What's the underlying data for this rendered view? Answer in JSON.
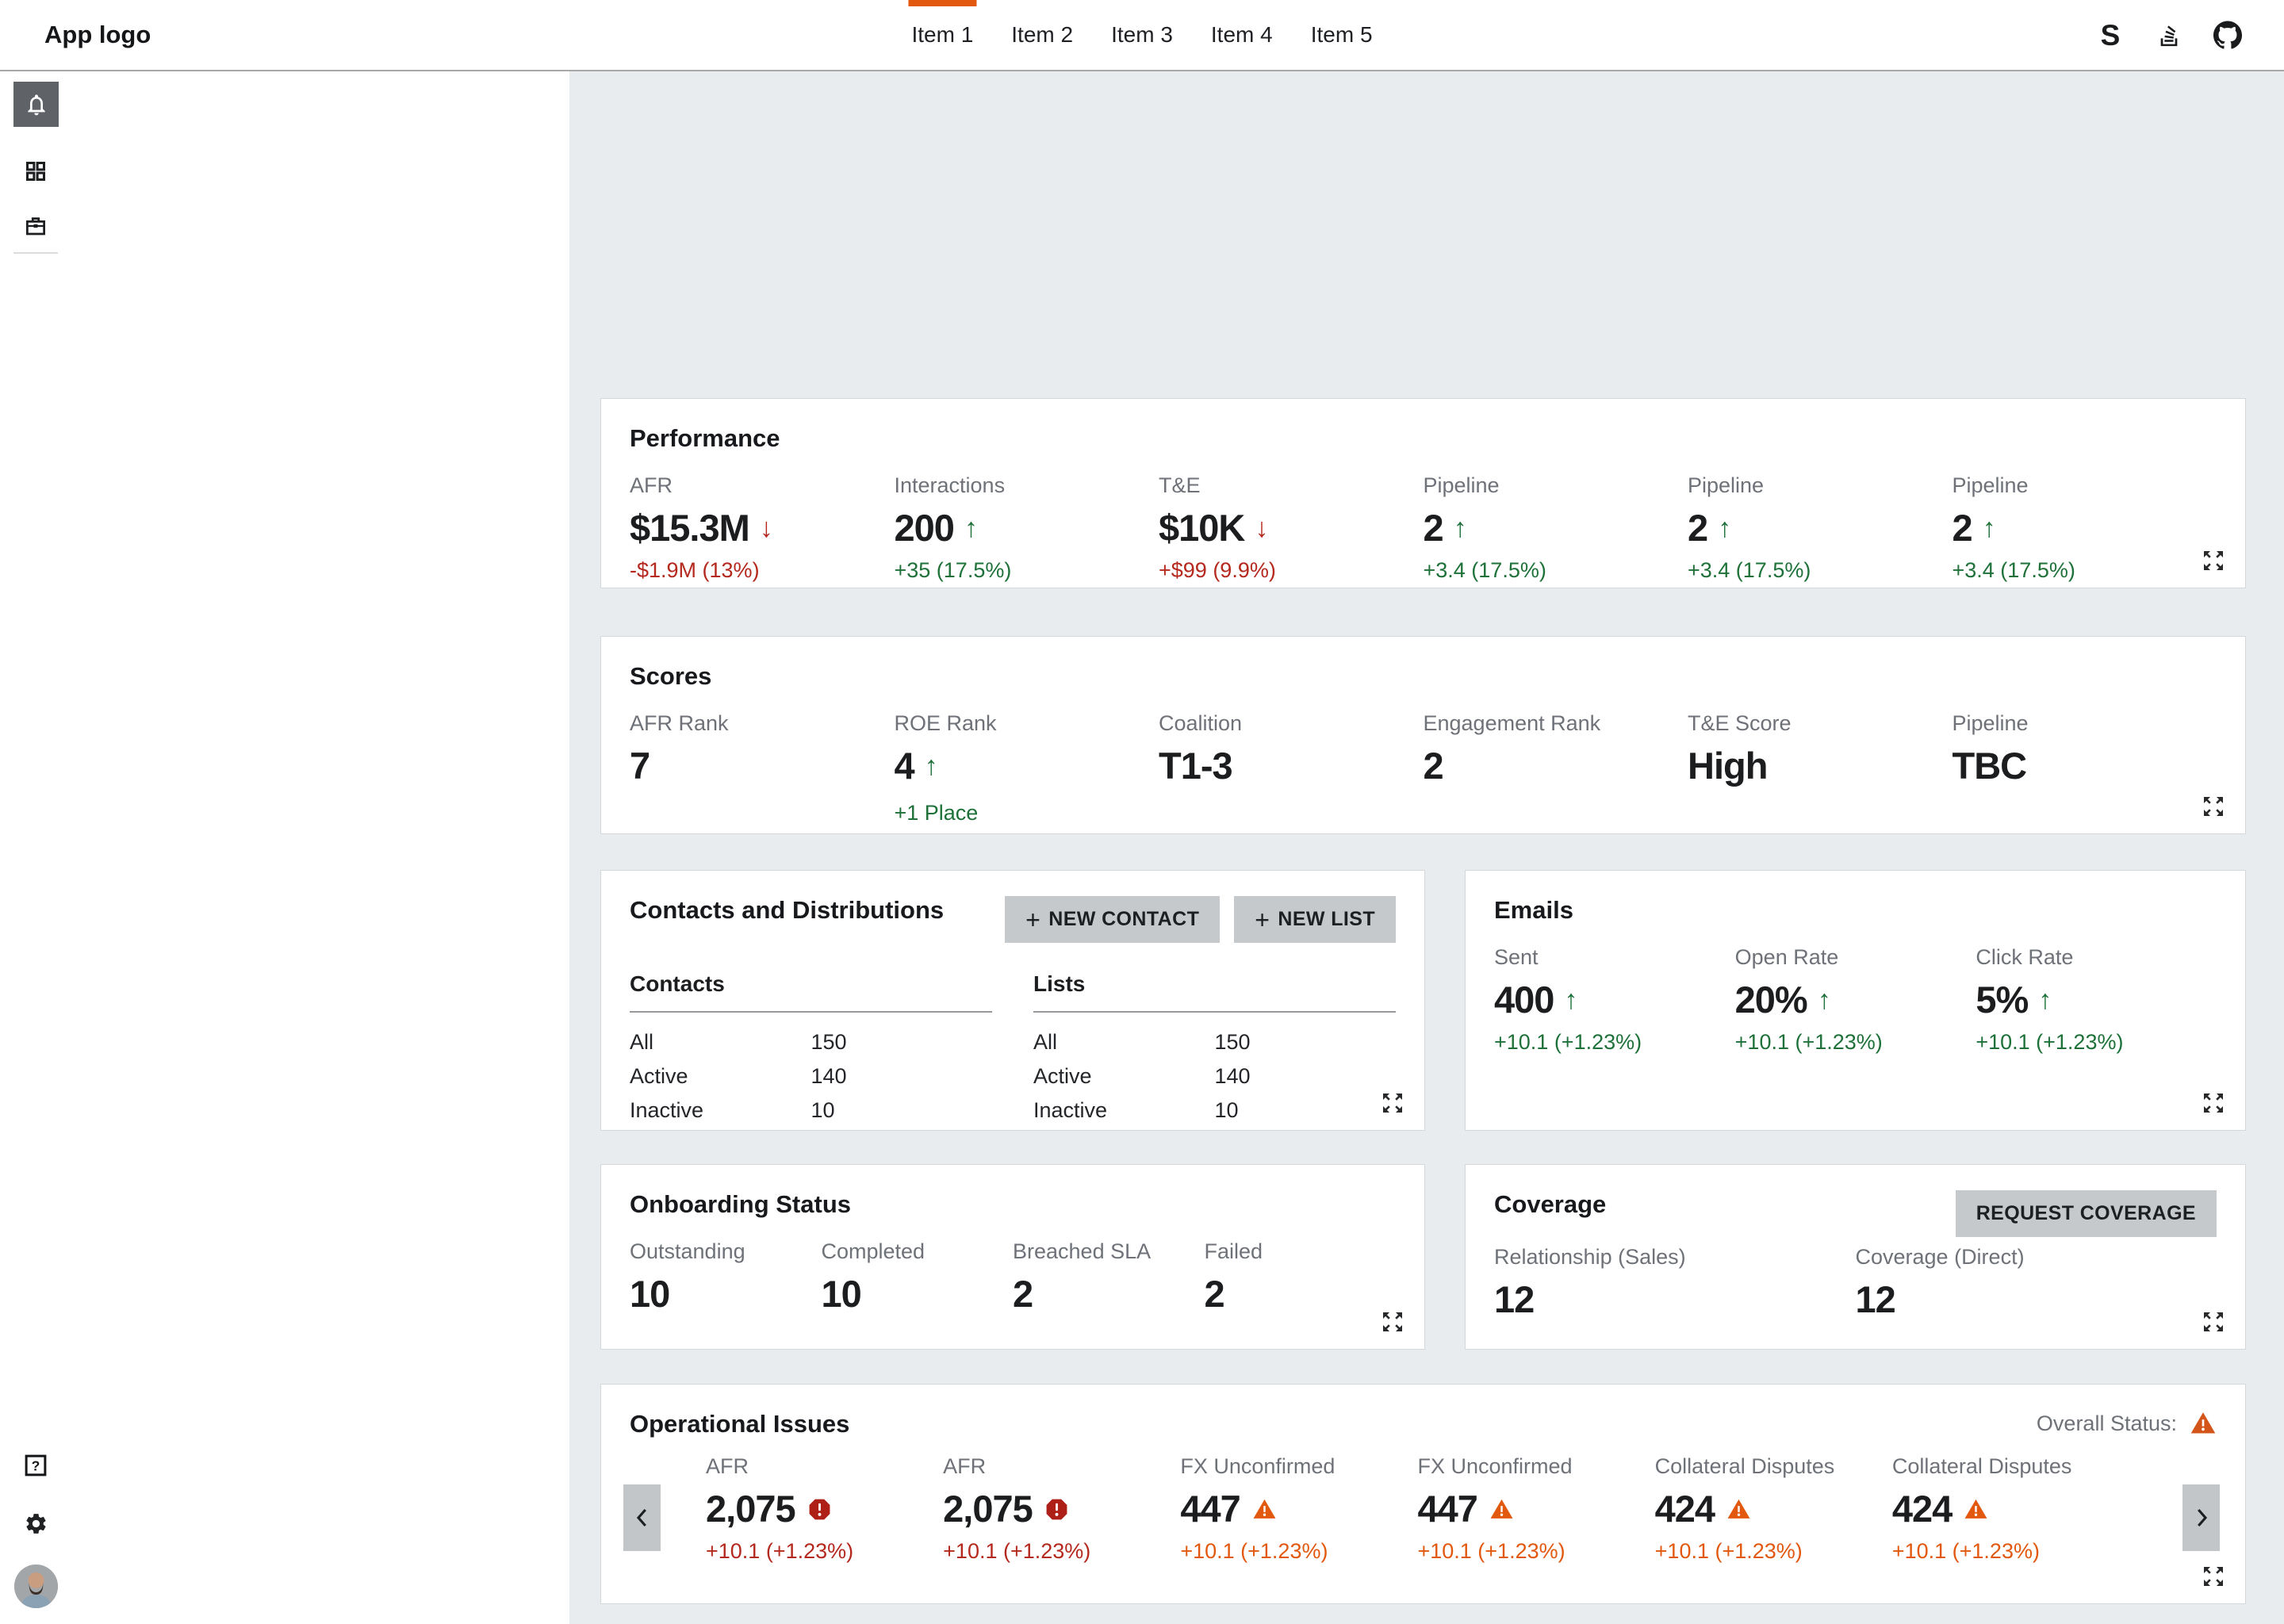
{
  "navbar": {
    "logo": "App logo",
    "tabs": [
      {
        "label": "Item 1",
        "active": true
      },
      {
        "label": "Item 2"
      },
      {
        "label": "Item 3"
      },
      {
        "label": "Item 4"
      },
      {
        "label": "Item 5"
      }
    ],
    "icons": [
      "s-logo-icon",
      "stackoverflow-icon",
      "github-icon"
    ],
    "s_glyph": "S"
  },
  "sidebar": {
    "rail_icons": [
      "bell-icon",
      "grid-icon",
      "briefcase-icon"
    ],
    "bottom_icons": [
      "help-icon",
      "gear-icon",
      "avatar"
    ],
    "help_glyph": "?"
  },
  "cards": {
    "performance": {
      "title": "Performance",
      "metrics": [
        {
          "label": "AFR",
          "value": "$15.3M",
          "dir": "down",
          "change": "-$1.9M (13%)",
          "tone": "neg"
        },
        {
          "label": "Interactions",
          "value": "200",
          "dir": "up",
          "change": "+35 (17.5%)",
          "tone": "pos"
        },
        {
          "label": "T&E",
          "value": "$10K",
          "dir": "down",
          "change": "+$99 (9.9%)",
          "tone": "neg"
        },
        {
          "label": "Pipeline",
          "value": "2",
          "dir": "up",
          "change": "+3.4 (17.5%)",
          "tone": "pos"
        },
        {
          "label": "Pipeline",
          "value": "2",
          "dir": "up",
          "change": "+3.4 (17.5%)",
          "tone": "pos"
        },
        {
          "label": "Pipeline",
          "value": "2",
          "dir": "up",
          "change": "+3.4 (17.5%)",
          "tone": "pos"
        }
      ]
    },
    "scores": {
      "title": "Scores",
      "metrics": [
        {
          "label": "AFR Rank",
          "value": "7"
        },
        {
          "label": "ROE Rank",
          "value": "4",
          "dir": "up",
          "sub": "+1 Place",
          "sub_tone": "pos"
        },
        {
          "label": "Coalition",
          "value": "T1-3"
        },
        {
          "label": "Engagement Rank",
          "value": "2"
        },
        {
          "label": "T&E Score",
          "value": "High"
        },
        {
          "label": "Pipeline",
          "value": "TBC"
        }
      ]
    },
    "contacts": {
      "title": "Contacts and Distributions",
      "buttons": [
        {
          "label": "NEW CONTACT"
        },
        {
          "label": "NEW LIST"
        }
      ],
      "tables": [
        {
          "heading": "Contacts",
          "rows": [
            {
              "label": "All",
              "value": "150"
            },
            {
              "label": "Active",
              "value": "140"
            },
            {
              "label": "Inactive",
              "value": "10"
            }
          ]
        },
        {
          "heading": "Lists",
          "rows": [
            {
              "label": "All",
              "value": "150"
            },
            {
              "label": "Active",
              "value": "140"
            },
            {
              "label": "Inactive",
              "value": "10"
            }
          ]
        }
      ]
    },
    "emails": {
      "title": "Emails",
      "metrics": [
        {
          "label": "Sent",
          "value": "400",
          "dir": "up",
          "change": "+10.1 (+1.23%)",
          "tone": "pos"
        },
        {
          "label": "Open Rate",
          "value": "20%",
          "dir": "up",
          "change": "+10.1 (+1.23%)",
          "tone": "pos"
        },
        {
          "label": "Click Rate",
          "value": "5%",
          "dir": "up",
          "change": "+10.1 (+1.23%)",
          "tone": "pos"
        }
      ]
    },
    "onboarding": {
      "title": "Onboarding Status",
      "metrics": [
        {
          "label": "Outstanding",
          "value": "10"
        },
        {
          "label": "Completed",
          "value": "10"
        },
        {
          "label": "Breached SLA",
          "value": "2"
        },
        {
          "label": "Failed",
          "value": "2"
        }
      ]
    },
    "coverage": {
      "title": "Coverage",
      "button": "REQUEST COVERAGE",
      "metrics": [
        {
          "label": "Relationship (Sales)",
          "value": "12"
        },
        {
          "label": "Coverage (Direct)",
          "value": "12"
        }
      ]
    },
    "operational": {
      "title": "Operational Issues",
      "overall_label": "Overall Status:",
      "metrics": [
        {
          "label": "AFR",
          "value": "2,075",
          "icon": "error",
          "change": "+10.1 (+1.23%)",
          "tone": "neg"
        },
        {
          "label": "AFR",
          "value": "2,075",
          "icon": "error",
          "change": "+10.1 (+1.23%)",
          "tone": "neg"
        },
        {
          "label": "FX Unconfirmed",
          "value": "447",
          "icon": "warning",
          "change": "+10.1 (+1.23%)",
          "tone": "warn"
        },
        {
          "label": "FX Unconfirmed",
          "value": "447",
          "icon": "warning",
          "change": "+10.1 (+1.23%)",
          "tone": "warn"
        },
        {
          "label": "Collateral Disputes",
          "value": "424",
          "icon": "warning",
          "change": "+10.1 (+1.23%)",
          "tone": "warn"
        },
        {
          "label": "Collateral Disputes",
          "value": "424",
          "icon": "warning",
          "change": "+10.1 (+1.23%)",
          "tone": "warn"
        }
      ]
    }
  },
  "colors": {
    "accent_orange": "#e2580f",
    "positive_green": "#1e7139",
    "negative_red": "#b4281d",
    "warning_orange": "#e2580f",
    "error_red": "#ad1f17",
    "page_bg": "#e8ecef",
    "card_bg": "#ffffff",
    "muted_label": "#6e7278",
    "button_gray": "#c6c9cc",
    "active_rail_gray": "#5f6368"
  }
}
